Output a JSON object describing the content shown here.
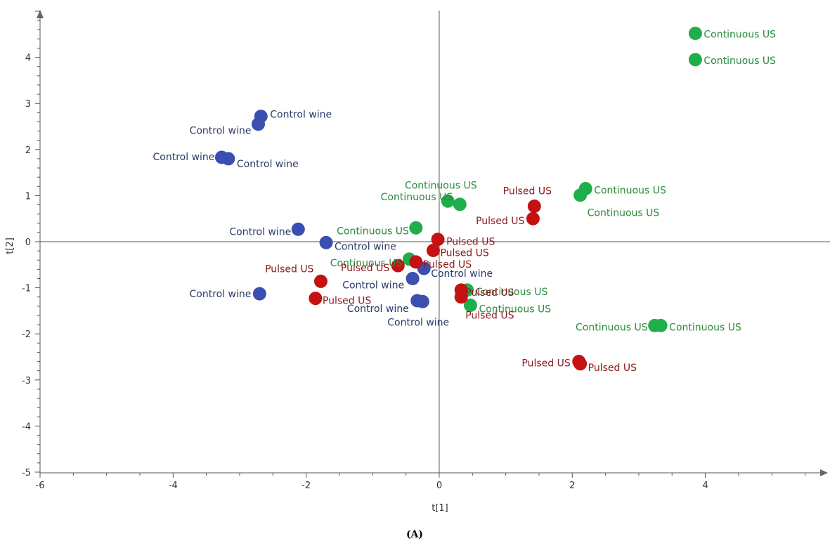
{
  "chart_data": {
    "type": "scatter",
    "xlabel": "t[1]",
    "ylabel": "t[2]",
    "xlim": [
      -6,
      5.8
    ],
    "ylim": [
      -5,
      4.9
    ],
    "x_ticks": [
      -6,
      -4,
      -2,
      0,
      2,
      4
    ],
    "y_ticks": [
      -5,
      -4,
      -3,
      -2,
      -1,
      0,
      1,
      2,
      3,
      4
    ],
    "grid": false,
    "legend": "none",
    "caption": "(A)",
    "colors": {
      "Control wine": "#3a4fb0",
      "Continuous US": "#1fae4b",
      "Pulsed US": "#c41212"
    },
    "label_colors": {
      "Control wine": "#2b3a66",
      "Continuous US": "#2a8a3a",
      "Pulsed US": "#8b1a1a"
    },
    "points": [
      {
        "group": "Control wine",
        "label": "Control wine",
        "x": -2.68,
        "y": 2.72
      },
      {
        "group": "Control wine",
        "label": "Control wine",
        "x": -2.72,
        "y": 2.55
      },
      {
        "group": "Control wine",
        "label": "Control wine",
        "x": -3.27,
        "y": 1.83
      },
      {
        "group": "Control wine",
        "label": "Control wine",
        "x": -3.17,
        "y": 1.8
      },
      {
        "group": "Control wine",
        "label": "Control wine",
        "x": -2.12,
        "y": 0.27
      },
      {
        "group": "Control wine",
        "label": "Control wine",
        "x": -1.7,
        "y": -0.02
      },
      {
        "group": "Control wine",
        "label": "Control wine",
        "x": -0.23,
        "y": -0.58
      },
      {
        "group": "Control wine",
        "label": "Control wine",
        "x": -0.4,
        "y": -0.8
      },
      {
        "group": "Control wine",
        "label": "Control wine",
        "x": -2.7,
        "y": -1.13
      },
      {
        "group": "Control wine",
        "label": "Control wine",
        "x": -0.33,
        "y": -1.28
      },
      {
        "group": "Control wine",
        "label": "Control wine",
        "x": -0.25,
        "y": -1.3
      },
      {
        "group": "Continuous US",
        "label": "Continuous US",
        "x": 3.85,
        "y": 4.52
      },
      {
        "group": "Continuous US",
        "label": "Continuous US",
        "x": 3.85,
        "y": 3.95
      },
      {
        "group": "Continuous US",
        "label": "Continuous US",
        "x": 0.13,
        "y": 0.88
      },
      {
        "group": "Continuous US",
        "label": "Continuous US",
        "x": 0.31,
        "y": 0.81
      },
      {
        "group": "Continuous US",
        "label": "Continuous US",
        "x": 2.2,
        "y": 1.15
      },
      {
        "group": "Continuous US",
        "label": "Continuous US",
        "x": 2.12,
        "y": 1.01
      },
      {
        "group": "Continuous US",
        "label": "Continuous US",
        "x": -0.35,
        "y": 0.3
      },
      {
        "group": "Continuous US",
        "label": "Continuous US",
        "x": -0.45,
        "y": -0.38
      },
      {
        "group": "Continuous US",
        "label": "Continuous US",
        "x": 0.42,
        "y": -1.05
      },
      {
        "group": "Continuous US",
        "label": "Continuous US",
        "x": 0.47,
        "y": -1.38
      },
      {
        "group": "Continuous US",
        "label": "Continuous US",
        "x": 3.24,
        "y": -1.82
      },
      {
        "group": "Continuous US",
        "label": "Continuous US",
        "x": 3.33,
        "y": -1.82
      },
      {
        "group": "Pulsed US",
        "label": "Pulsed US",
        "x": 1.43,
        "y": 0.77
      },
      {
        "group": "Pulsed US",
        "label": "Pulsed US",
        "x": 1.41,
        "y": 0.5
      },
      {
        "group": "Pulsed US",
        "label": "Pulsed US",
        "x": -0.02,
        "y": 0.05
      },
      {
        "group": "Pulsed US",
        "label": "Pulsed US",
        "x": -0.09,
        "y": -0.19
      },
      {
        "group": "Pulsed US",
        "label": "Pulsed US",
        "x": -0.62,
        "y": -0.52
      },
      {
        "group": "Pulsed US",
        "label": "Pulsed US",
        "x": -0.35,
        "y": -0.44
      },
      {
        "group": "Pulsed US",
        "label": "Pulsed US",
        "x": -1.78,
        "y": -0.86
      },
      {
        "group": "Pulsed US",
        "label": "Pulsed US",
        "x": -1.86,
        "y": -1.23
      },
      {
        "group": "Pulsed US",
        "label": "Pulsed US",
        "x": 0.33,
        "y": -1.05
      },
      {
        "group": "Pulsed US",
        "label": "Pulsed US",
        "x": 0.33,
        "y": -1.2
      },
      {
        "group": "Pulsed US",
        "label": "Pulsed US",
        "x": 2.1,
        "y": -2.6
      },
      {
        "group": "Pulsed US",
        "label": "Pulsed US",
        "x": 2.12,
        "y": -2.65
      }
    ]
  }
}
